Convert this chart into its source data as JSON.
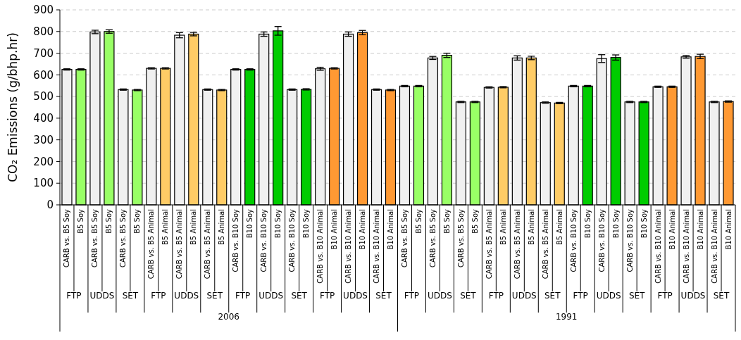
{
  "chart_data": {
    "type": "bar",
    "ylabel": "CO₂ Emissions (g/bhp.hr)",
    "categories": [
      "CARB vs. B5 Soy",
      "B5 Soy",
      "CARB vs. B5 Soy",
      "B5 Soy",
      "CARB vs. B5 Soy",
      "B5 Soy",
      "CARB vs. B5 Animal",
      "B5 Animal",
      "CARB vs. B5 Animal",
      "B5 Animal",
      "CARB vs. B5 Animal",
      "B5 Animal",
      "CARB vs. B10 Soy",
      "B10 Soy",
      "CARB vs. B10 Soy",
      "B10 Soy",
      "CARB vs. B10 Soy",
      "B10 Soy",
      "CARB vs. B10 Animal",
      "B10 Animal",
      "CARB vs. B10 Animal",
      "B10 Animal",
      "CARB vs. B10 Animal",
      "B10 Animal",
      "CARB vs. B5 Soy",
      "B5 Soy",
      "CARB vs. B5 Soy",
      "B5 Soy",
      "CARB vs. B5 Soy",
      "B5 Soy",
      "CARB vs. B5 Animal",
      "B5 Animal",
      "CARB vs. B5 Animal",
      "B5 Animal",
      "CARB vs. B5 Animal",
      "B5 Animal",
      "CARB vs. B10 Soy",
      "B10 Soy",
      "CARB vs. B10 Soy",
      "B10 Soy",
      "CARB vs. B10 Soy",
      "B10 Soy",
      "CARB vs. B10 Animal",
      "B10 Animal",
      "CARB vs. B10 Animal",
      "B10 Animal",
      "CARB vs. B10 Animal",
      "B10 Animal"
    ],
    "series": [
      {
        "values": [
          625,
          625,
          798,
          800,
          532,
          530,
          630,
          630,
          783,
          788,
          532,
          530,
          625,
          625,
          788,
          803,
          532,
          533,
          628,
          630,
          788,
          795,
          532,
          530,
          548,
          548,
          678,
          690,
          475,
          475,
          542,
          543,
          678,
          678,
          472,
          470,
          548,
          548,
          675,
          680,
          475,
          475,
          545,
          545,
          683,
          685,
          475,
          477
        ],
        "errors": [
          3,
          3,
          8,
          8,
          3,
          3,
          3,
          3,
          12,
          8,
          3,
          3,
          3,
          3,
          10,
          20,
          3,
          3,
          7,
          3,
          10,
          10,
          3,
          3,
          3,
          3,
          7,
          10,
          3,
          3,
          3,
          3,
          10,
          8,
          3,
          3,
          3,
          3,
          18,
          12,
          3,
          3,
          3,
          3,
          6,
          10,
          3,
          3
        ],
        "colors": [
          "#f0f0f0",
          "#99ff66",
          "#f0f0f0",
          "#99ff66",
          "#f0f0f0",
          "#99ff66",
          "#f0f0f0",
          "#ffcc66",
          "#f0f0f0",
          "#ffcc66",
          "#f0f0f0",
          "#ffcc66",
          "#f0f0f0",
          "#00cc00",
          "#f0f0f0",
          "#00cc00",
          "#f0f0f0",
          "#00cc00",
          "#f0f0f0",
          "#ff9933",
          "#f0f0f0",
          "#ff9933",
          "#f0f0f0",
          "#ff9933",
          "#f0f0f0",
          "#99ff66",
          "#f0f0f0",
          "#99ff66",
          "#f0f0f0",
          "#99ff66",
          "#f0f0f0",
          "#ffcc66",
          "#f0f0f0",
          "#ffcc66",
          "#f0f0f0",
          "#ffcc66",
          "#f0f0f0",
          "#00cc00",
          "#f0f0f0",
          "#00cc00",
          "#f0f0f0",
          "#00cc00",
          "#f0f0f0",
          "#ff9933",
          "#f0f0f0",
          "#ff9933",
          "#f0f0f0",
          "#ff9933"
        ]
      }
    ],
    "ylim": [
      0,
      900
    ],
    "yticks": [
      0,
      100,
      200,
      300,
      400,
      500,
      600,
      700,
      800,
      900
    ],
    "grid": "y",
    "annotations": [
      "FTP",
      "UDDS",
      "SET",
      "FTP",
      "UDDS",
      "SET",
      "FTP",
      "UDDS",
      "SET",
      "FTP",
      "UDDS",
      "SET",
      "FTP",
      "UDDS",
      "SET",
      "FTP",
      "UDDS",
      "SET",
      "FTP",
      "UDDS",
      "SET",
      "FTP",
      "UDDS",
      "SET",
      "2006",
      "1991"
    ]
  }
}
